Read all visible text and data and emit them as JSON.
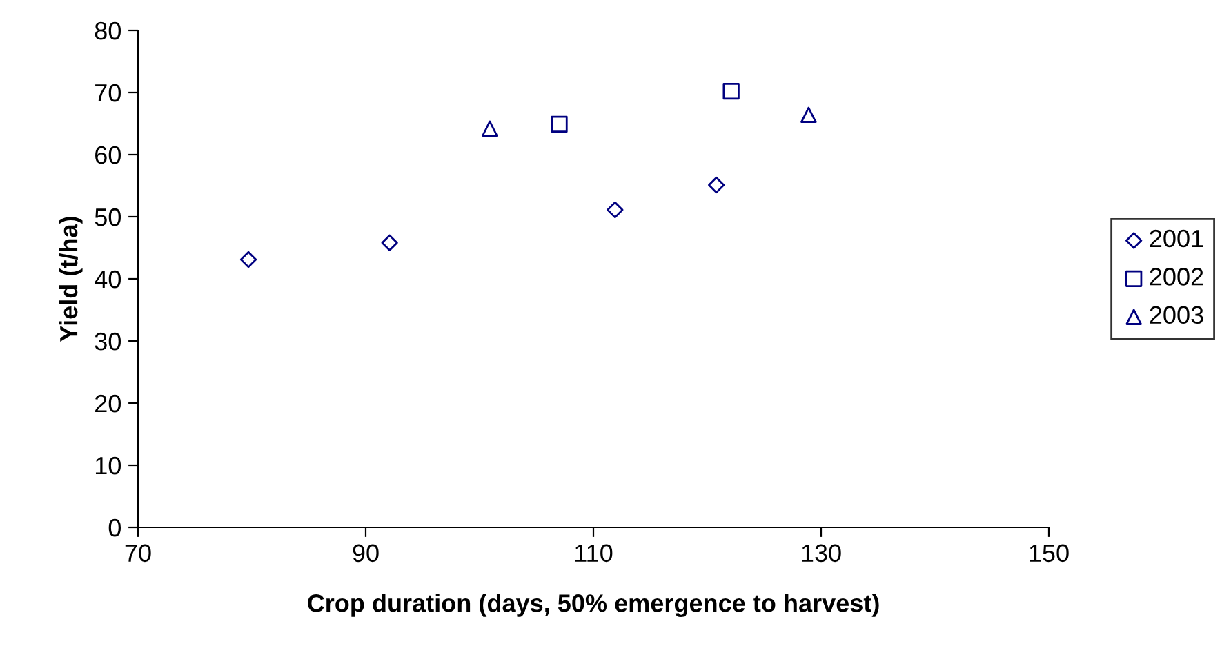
{
  "chart_data": {
    "type": "scatter",
    "xlabel": "Crop duration (days, 50% emergence to harvest)",
    "ylabel": "Yield (t/ha)",
    "xlim": [
      70,
      150
    ],
    "xticks": [
      70,
      90,
      110,
      130,
      150
    ],
    "ylim": [
      0,
      80
    ],
    "yticks": [
      0,
      10,
      20,
      30,
      40,
      50,
      60,
      70,
      80
    ],
    "grid": false,
    "legend": "right",
    "series": [
      {
        "name": "2001",
        "color": "#000080",
        "marker": "diamond",
        "x": [
          79.7,
          92.1,
          111.9,
          120.8
        ],
        "values": [
          43.1,
          45.8,
          51.1,
          55.1
        ]
      },
      {
        "name": "2002",
        "color": "#000080",
        "marker": "square",
        "x": [
          107.0,
          122.1
        ],
        "values": [
          64.9,
          70.2
        ]
      },
      {
        "name": "2003",
        "color": "#000080",
        "marker": "triangle",
        "x": [
          100.9,
          128.9
        ],
        "values": [
          64.2,
          66.4
        ]
      }
    ]
  }
}
